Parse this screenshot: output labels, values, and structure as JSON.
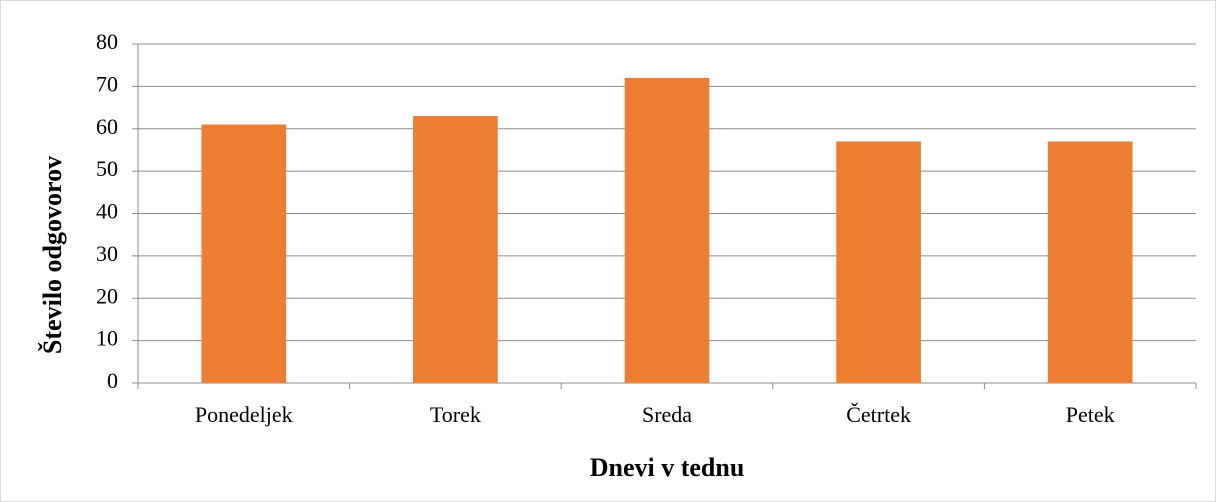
{
  "chart_data": {
    "type": "bar",
    "categories": [
      "Ponedeljek",
      "Torek",
      "Sreda",
      "Četrtek",
      "Petek"
    ],
    "values": [
      61,
      63,
      72,
      57,
      57
    ],
    "color": "#ed7d31",
    "x_label": "Dnevi v tednu",
    "y_label": "Število odgovorov",
    "ylim": [
      0,
      80
    ],
    "yticks": [
      0,
      10,
      20,
      30,
      40,
      50,
      60,
      70,
      80
    ],
    "grid": true
  }
}
